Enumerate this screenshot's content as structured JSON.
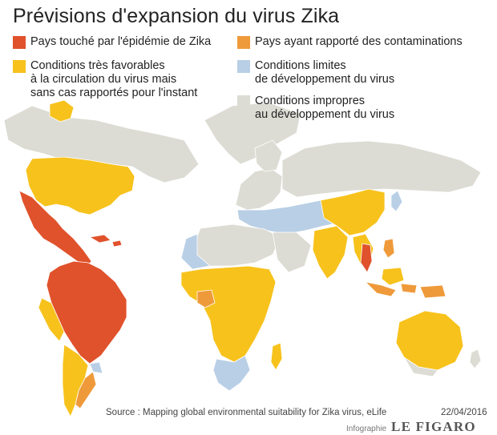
{
  "title": "Prévisions d'expansion du virus Zika",
  "legend": [
    {
      "label": "Pays touché par l'épidémie de Zika",
      "color": "#e0522c"
    },
    {
      "label": "Pays ayant rapporté des contaminations",
      "color": "#ef9a3a"
    },
    {
      "label": "Conditions très favorables\nà la circulation du virus mais\nsans cas rapportés pour l'instant",
      "color": "#f7c21c"
    },
    {
      "label": "Conditions limites\nde développement du virus",
      "color": "#b9cfe6"
    },
    {
      "label": "Conditions impropres\nau développement du virus",
      "color": "#dcdcd4"
    }
  ],
  "source": "Source : Mapping global environmental suitability for Zika virus, eLife",
  "date": "22/04/2016",
  "credit": {
    "label": "Infographie",
    "logo": "LE FIGARO"
  }
}
